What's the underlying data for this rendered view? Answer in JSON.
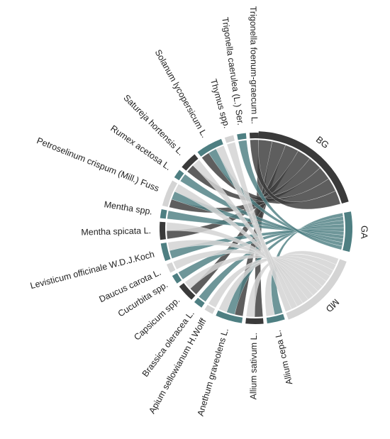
{
  "chart_data": {
    "type": "chord",
    "groups": [
      {
        "name": "BG",
        "color": "#3a3a3a"
      },
      {
        "name": "GA",
        "color": "#4e7f82"
      },
      {
        "name": "MD",
        "color": "#d4d4d4"
      }
    ],
    "species": [
      {
        "name": "Allium cepa L.",
        "group": "GA",
        "links": {
          "GA": 1,
          "MD": 1
        }
      },
      {
        "name": "Allium sativum L.",
        "group": "BG",
        "links": {
          "BG": 1,
          "MD": 1
        }
      },
      {
        "name": "Anethum graveolens L.",
        "group": "GA",
        "links": {
          "BG": 1,
          "GA": 1,
          "MD": 1
        }
      },
      {
        "name": "Apium sellowianum H.Wolff",
        "group": "MD",
        "links": {
          "MD": 1
        }
      },
      {
        "name": "Brassica oleracea L.",
        "group": "GA",
        "links": {
          "GA": 1
        }
      },
      {
        "name": "Capsicum spp.",
        "group": "BG",
        "links": {
          "BG": 1,
          "MD": 1
        }
      },
      {
        "name": "Cucurbita spp.",
        "group": "GA",
        "links": {
          "GA": 1
        }
      },
      {
        "name": "Daucus carota L.",
        "group": "MD",
        "links": {
          "MD": 1
        }
      },
      {
        "name": "Levisticum officinale W.D.J.Koch",
        "group": "GA",
        "links": {
          "GA": 1,
          "MD": 1
        }
      },
      {
        "name": "Mentha spicata L.",
        "group": "BG",
        "links": {
          "BG": 1,
          "MD": 1
        }
      },
      {
        "name": "Mentha spp.",
        "group": "GA",
        "links": {
          "GA": 1
        }
      },
      {
        "name": "Petroselinum crispum (Mill.) Fuss",
        "group": "MD",
        "links": {
          "BG": 1,
          "GA": 1,
          "MD": 1
        }
      },
      {
        "name": "Rumex acetosa L.",
        "group": "GA",
        "links": {
          "GA": 1
        }
      },
      {
        "name": "Satureja hortensis L.",
        "group": "BG",
        "links": {
          "BG": 1,
          "MD": 1
        }
      },
      {
        "name": "Solanum lycopersicum L.",
        "group": "GA",
        "links": {
          "BG": 1,
          "GA": 1,
          "MD": 1
        }
      },
      {
        "name": "Thymus spp.",
        "group": "MD",
        "links": {
          "MD": 1
        }
      },
      {
        "name": "Trigonella caerulea (L.) Ser.",
        "group": "GA",
        "links": {
          "GA": 1
        }
      },
      {
        "name": "Trigonella foenum-graecum L.",
        "group": "BG",
        "links": {
          "BG": 1
        }
      }
    ]
  }
}
